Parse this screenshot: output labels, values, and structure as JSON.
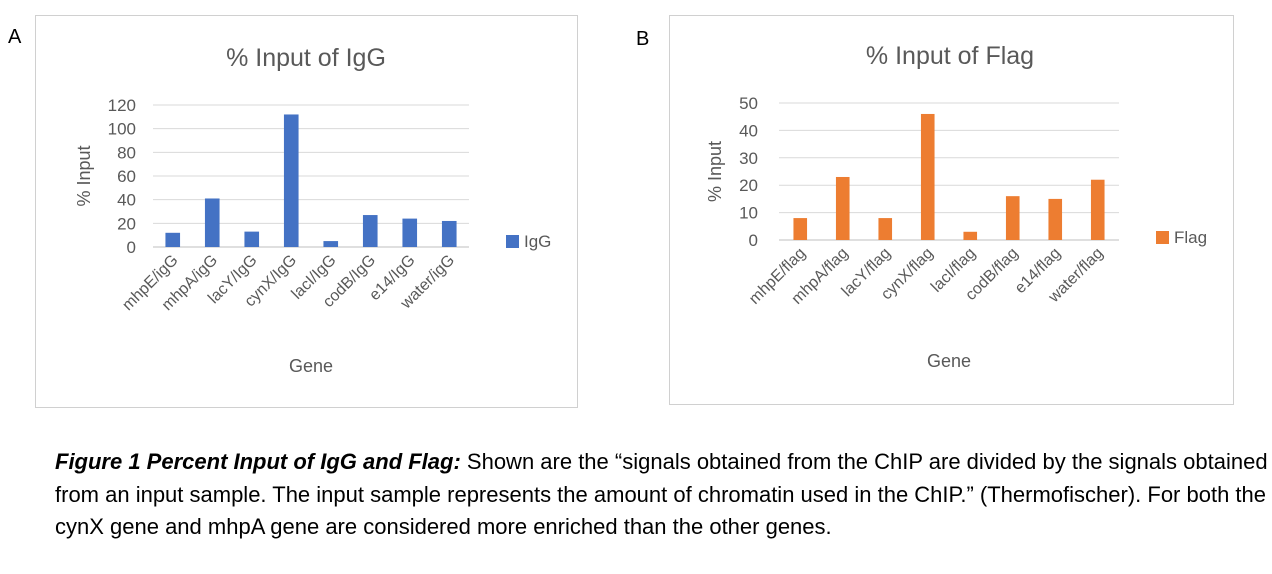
{
  "panels": {
    "a": "A",
    "b": "B"
  },
  "chart_data": [
    {
      "type": "bar",
      "title": "% Input of IgG",
      "xlabel": "Gene",
      "ylabel": "% Input",
      "categories": [
        "mhpE/igG",
        "mhpA/igG",
        "lacY/IgG",
        "cynX/IgG",
        "lacI/IgG",
        "codB/IgG",
        "e14/IgG",
        "water/igG"
      ],
      "series": [
        {
          "name": "IgG",
          "color": "#4472C4",
          "values": [
            12,
            41,
            13,
            112,
            5,
            27,
            24,
            22
          ]
        }
      ],
      "ylim": [
        0,
        120
      ],
      "yticks": [
        0,
        20,
        40,
        60,
        80,
        100,
        120
      ],
      "grid": true,
      "legend_position": "right"
    },
    {
      "type": "bar",
      "title": "% Input of Flag",
      "xlabel": "Gene",
      "ylabel": "% Input",
      "categories": [
        "mhpE/flag",
        "mhpA/flag",
        "lacY/flag",
        "cynX/flag",
        "lacI/flag",
        "codB/flag",
        "e14/flag",
        "water/flag"
      ],
      "series": [
        {
          "name": "Flag",
          "color": "#ED7D31",
          "values": [
            8,
            23,
            8,
            46,
            3,
            16,
            15,
            22
          ]
        }
      ],
      "ylim": [
        0,
        50
      ],
      "yticks": [
        0,
        10,
        20,
        30,
        40,
        50
      ],
      "grid": true,
      "legend_position": "right"
    }
  ],
  "caption": {
    "heading": "Figure 1 Percent Input of IgG and Flag:",
    "text": " Shown are the “signals obtained from the ChIP are divided by the signals obtained from an input sample. The input sample represents the amount of chromatin used in the ChIP.” (Thermofischer). For both the cynX gene and mhpA gene are considered more enriched than the other genes."
  }
}
